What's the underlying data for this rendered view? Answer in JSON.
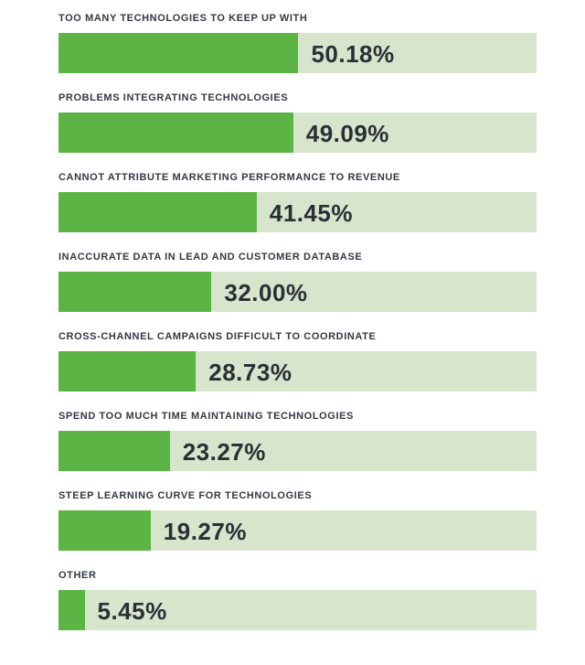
{
  "chart_data": {
    "type": "bar",
    "orientation": "horizontal",
    "title": "",
    "xlabel": "",
    "ylabel": "",
    "xlim": [
      0,
      100
    ],
    "unit": "%",
    "grid": false,
    "legend": null,
    "categories": [
      "TOO MANY TECHNOLOGIES TO KEEP UP WITH",
      "PROBLEMS INTEGRATING TECHNOLOGIES",
      "CANNOT ATTRIBUTE MARKETING PERFORMANCE TO REVENUE",
      "INACCURATE DATA IN LEAD AND CUSTOMER DATABASE",
      "CROSS-CHANNEL CAMPAIGNS DIFFICULT TO COORDINATE",
      "SPEND TOO MUCH TIME MAINTAINING TECHNOLOGIES",
      "STEEP LEARNING CURVE FOR TECHNOLOGIES",
      "OTHER"
    ],
    "values": [
      50.18,
      49.09,
      41.45,
      32.0,
      28.73,
      23.27,
      19.27,
      5.45
    ],
    "value_labels": [
      "50.18%",
      "49.09%",
      "41.45%",
      "32.00%",
      "28.73%",
      "23.27%",
      "19.27%",
      "5.45%"
    ],
    "colors": {
      "bar_fill": "#5cb444",
      "bar_track": "#d6e5cc",
      "category_text": "#343843",
      "value_text": "#2b2e35",
      "background": "#ffffff"
    }
  }
}
